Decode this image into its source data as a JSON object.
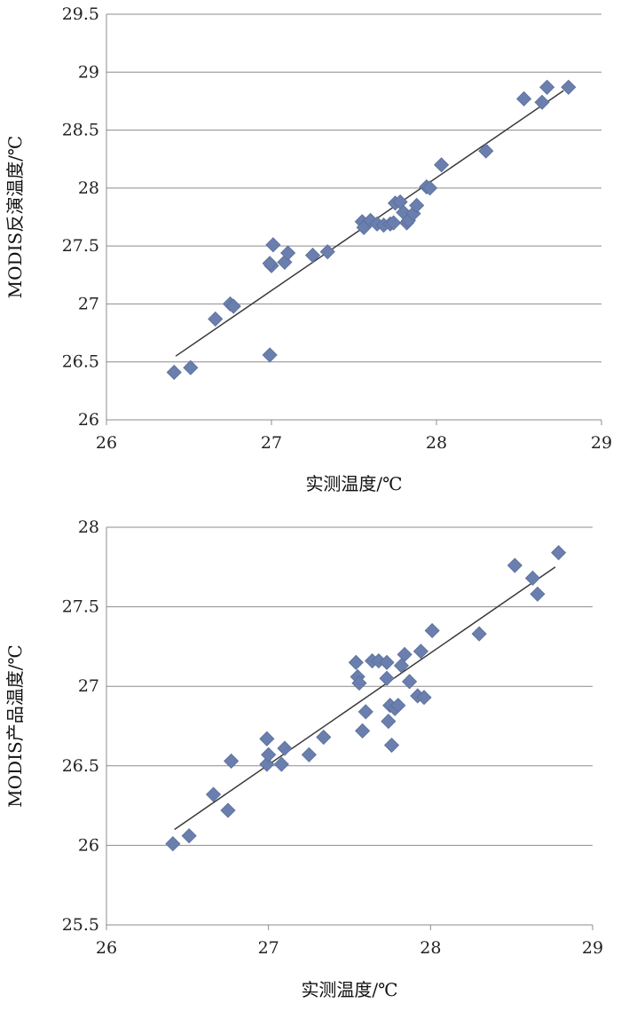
{
  "chart_data": [
    {
      "type": "scatter",
      "title": "",
      "xlabel": "实测温度/℃",
      "ylabel": "MODIS反演温度/℃",
      "xlim": [
        26,
        29
      ],
      "ylim": [
        26,
        29.5
      ],
      "xticks": [
        "26",
        "27",
        "28",
        "29"
      ],
      "yticks": [
        "26",
        "26.5",
        "27",
        "27.5",
        "28",
        "28.5",
        "29",
        "29.5"
      ],
      "grid": "horizontal",
      "legend": "none",
      "marker": "diamond",
      "marker_color": "#6a7fad",
      "trendline": {
        "x": [
          26.42,
          28.77
        ],
        "y": [
          26.55,
          28.84
        ]
      },
      "points": {
        "x": [
          26.41,
          26.51,
          26.66,
          26.75,
          26.77,
          26.99,
          27.0,
          26.99,
          27.01,
          27.08,
          27.1,
          27.25,
          27.34,
          27.55,
          27.56,
          27.6,
          27.64,
          27.68,
          27.72,
          27.74,
          27.75,
          27.78,
          27.8,
          27.82,
          27.83,
          27.86,
          27.88,
          27.94,
          27.96,
          28.03,
          28.3,
          28.53,
          28.64,
          28.67,
          28.8
        ],
        "y": [
          26.41,
          26.45,
          26.87,
          27.0,
          26.98,
          26.56,
          27.33,
          27.35,
          27.51,
          27.36,
          27.44,
          27.42,
          27.45,
          27.71,
          27.66,
          27.72,
          27.69,
          27.68,
          27.69,
          27.7,
          27.87,
          27.88,
          27.79,
          27.7,
          27.72,
          27.78,
          27.85,
          28.01,
          28.0,
          28.2,
          28.32,
          28.77,
          28.74,
          28.87,
          28.87
        ]
      }
    },
    {
      "type": "scatter",
      "title": "",
      "xlabel": "实测温度/℃",
      "ylabel": "MODIS产品温度/℃",
      "xlim": [
        26,
        29
      ],
      "ylim": [
        25.5,
        28
      ],
      "xticks": [
        "26",
        "27",
        "28",
        "29"
      ],
      "yticks": [
        "25.5",
        "26",
        "26.5",
        "27",
        "27.5",
        "28"
      ],
      "grid": "horizontal",
      "legend": "none",
      "marker": "diamond",
      "marker_color": "#6a7fad",
      "trendline": {
        "x": [
          26.42,
          28.77
        ],
        "y": [
          26.1,
          27.75
        ]
      },
      "points": {
        "x": [
          26.41,
          26.51,
          26.66,
          26.75,
          26.77,
          26.99,
          27.0,
          26.99,
          27.08,
          27.1,
          27.25,
          27.34,
          27.54,
          27.55,
          27.56,
          27.58,
          27.6,
          27.64,
          27.68,
          27.73,
          27.73,
          27.74,
          27.75,
          27.76,
          27.78,
          27.8,
          27.82,
          27.84,
          27.87,
          27.92,
          27.94,
          27.96,
          28.01,
          28.3,
          28.52,
          28.63,
          28.66,
          28.79
        ],
        "y": [
          26.01,
          26.06,
          26.32,
          26.22,
          26.53,
          26.51,
          26.57,
          26.67,
          26.51,
          26.61,
          26.57,
          26.68,
          27.15,
          27.06,
          27.02,
          26.72,
          26.84,
          27.16,
          27.16,
          27.05,
          27.15,
          26.78,
          26.88,
          26.63,
          26.86,
          26.88,
          27.13,
          27.2,
          27.03,
          26.94,
          27.22,
          26.93,
          27.35,
          27.33,
          27.76,
          27.68,
          27.58,
          27.84
        ]
      }
    }
  ]
}
